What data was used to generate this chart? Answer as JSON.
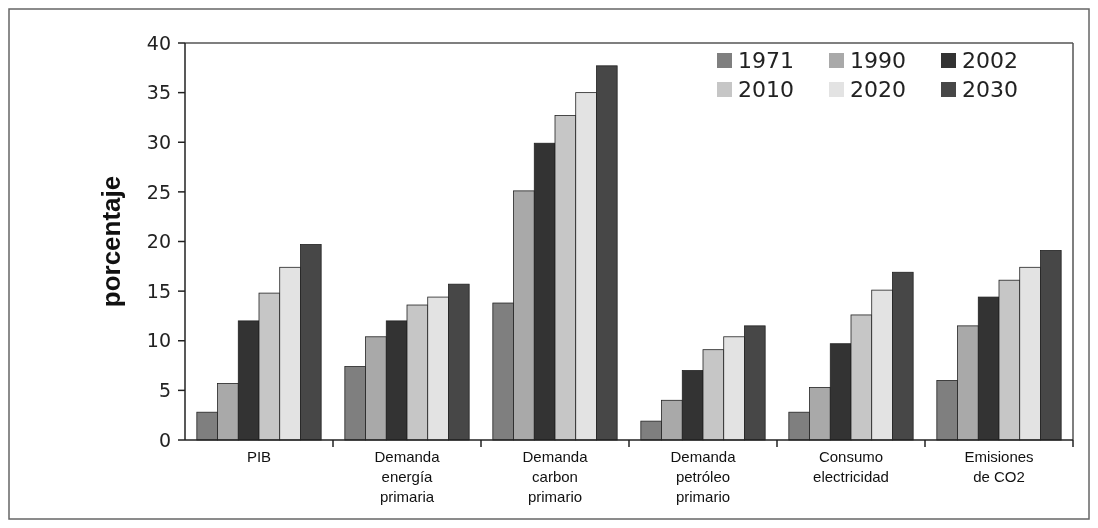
{
  "chart_data": {
    "type": "bar",
    "ylabel": "porcentaje",
    "categories": [
      "PIB",
      "Demanda energía primaria",
      "Demanda carbon primario",
      "Demanda petróleo primario",
      "Consumo electricidad",
      "Emisiones de CO2"
    ],
    "series": [
      {
        "name": "1971",
        "color": "#7f7f7f",
        "values": [
          2.8,
          7.4,
          13.8,
          1.9,
          2.8,
          6.0
        ]
      },
      {
        "name": "1990",
        "color": "#a9a9a9",
        "values": [
          5.7,
          10.4,
          25.1,
          4.0,
          5.3,
          11.5
        ]
      },
      {
        "name": "2002",
        "color": "#333333",
        "values": [
          12.0,
          12.0,
          29.9,
          7.0,
          9.7,
          14.4
        ]
      },
      {
        "name": "2010",
        "color": "#c6c6c6",
        "values": [
          14.8,
          13.6,
          32.7,
          9.1,
          12.6,
          16.1
        ]
      },
      {
        "name": "2020",
        "color": "#e3e3e3",
        "values": [
          17.4,
          14.4,
          35.0,
          10.4,
          15.1,
          17.4
        ]
      },
      {
        "name": "2030",
        "color": "#474747",
        "values": [
          19.7,
          15.7,
          37.7,
          11.5,
          16.9,
          19.1
        ]
      }
    ],
    "ylim": [
      0,
      40
    ],
    "yticks": [
      0,
      5,
      10,
      15,
      20,
      25,
      30,
      35,
      40
    ],
    "grid": false,
    "legend": "top right"
  }
}
